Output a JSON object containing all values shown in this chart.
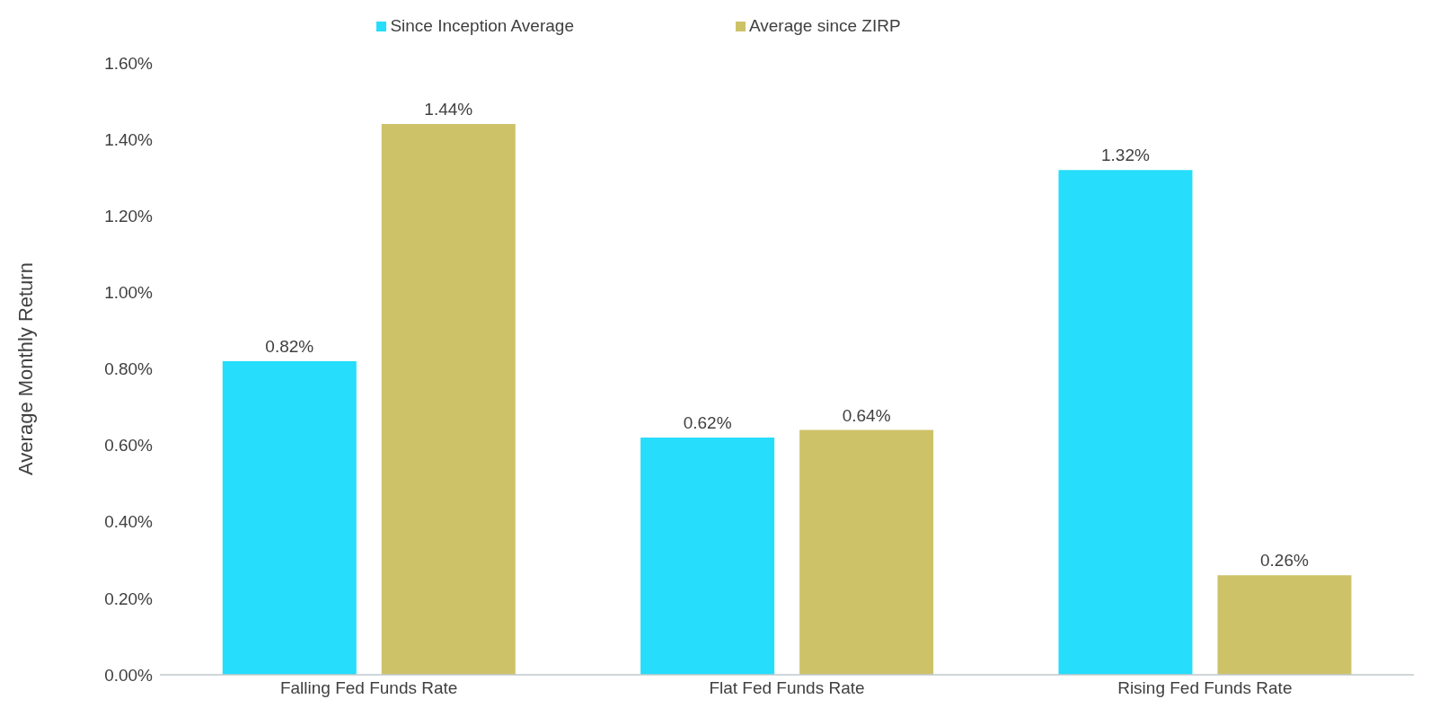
{
  "chart_data": {
    "type": "bar",
    "ylabel": "Average Monthly Return",
    "categories": [
      "Falling Fed Funds Rate",
      "Flat Fed Funds Rate",
      "Rising Fed Funds Rate"
    ],
    "series": [
      {
        "name": "Since Inception Average",
        "color": "#26ddfb",
        "values": [
          0.82,
          0.62,
          1.32
        ],
        "value_labels": [
          "0.82%",
          "0.62%",
          "1.32%"
        ]
      },
      {
        "name": "Average since ZIRP",
        "color": "#cdc268",
        "values": [
          1.44,
          0.64,
          0.26
        ],
        "value_labels": [
          "1.44%",
          "0.64%",
          "0.26%"
        ]
      }
    ],
    "ylim": [
      0,
      1.6
    ],
    "yticks": [
      {
        "value": 0,
        "label": "0.00%"
      },
      {
        "value": 0.2,
        "label": "0.20%"
      },
      {
        "value": 0.4,
        "label": "0.40%"
      },
      {
        "value": 0.6,
        "label": "0.60%"
      },
      {
        "value": 0.8,
        "label": "0.80%"
      },
      {
        "value": 1,
        "label": "1.00%"
      },
      {
        "value": 1.2,
        "label": "1.20%"
      },
      {
        "value": 1.4,
        "label": "1.40%"
      },
      {
        "value": 1.6,
        "label": "1.60%"
      }
    ],
    "grid": false,
    "legend": "top"
  }
}
